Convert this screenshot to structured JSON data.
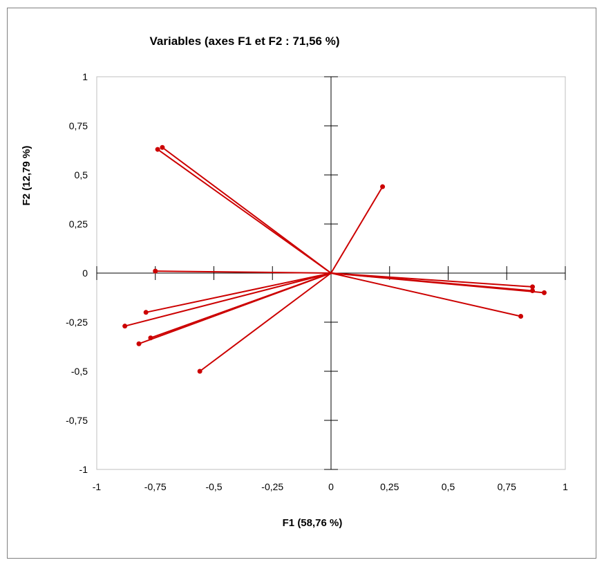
{
  "chart_data": {
    "type": "scatter",
    "title": "Variables (axes F1 et F2 : 71,56 %)",
    "xlabel": "F1 (58,76 %)",
    "ylabel": "F2 (12,79 %)",
    "xlim": [
      -1,
      1
    ],
    "ylim": [
      -1,
      1
    ],
    "x_ticks": [
      -1,
      -0.75,
      -0.5,
      -0.25,
      0,
      0.25,
      0.5,
      0.75,
      1
    ],
    "x_tick_labels": [
      "-1",
      "-0,75",
      "-0,5",
      "-0,25",
      "0",
      "0,25",
      "0,5",
      "0,75",
      "1"
    ],
    "y_ticks": [
      1,
      0.75,
      0.5,
      0.25,
      0,
      -0.25,
      -0.5,
      -0.75,
      -1
    ],
    "y_tick_labels": [
      "1",
      "0,75",
      "0,5",
      "0,25",
      "0",
      "-0,25",
      "-0,5",
      "-0,75",
      "-1"
    ],
    "grid": false,
    "series_color": "#cc0000",
    "vectors": [
      {
        "x": -0.74,
        "y": 0.63
      },
      {
        "x": -0.72,
        "y": 0.64
      },
      {
        "x": 0.22,
        "y": 0.44
      },
      {
        "x": -0.75,
        "y": 0.01
      },
      {
        "x": 0.86,
        "y": -0.07
      },
      {
        "x": 0.86,
        "y": -0.09
      },
      {
        "x": 0.91,
        "y": -0.1
      },
      {
        "x": 0.81,
        "y": -0.22
      },
      {
        "x": -0.79,
        "y": -0.2
      },
      {
        "x": -0.88,
        "y": -0.27
      },
      {
        "x": -0.77,
        "y": -0.33
      },
      {
        "x": -0.82,
        "y": -0.36
      },
      {
        "x": -0.56,
        "y": -0.5
      }
    ]
  }
}
